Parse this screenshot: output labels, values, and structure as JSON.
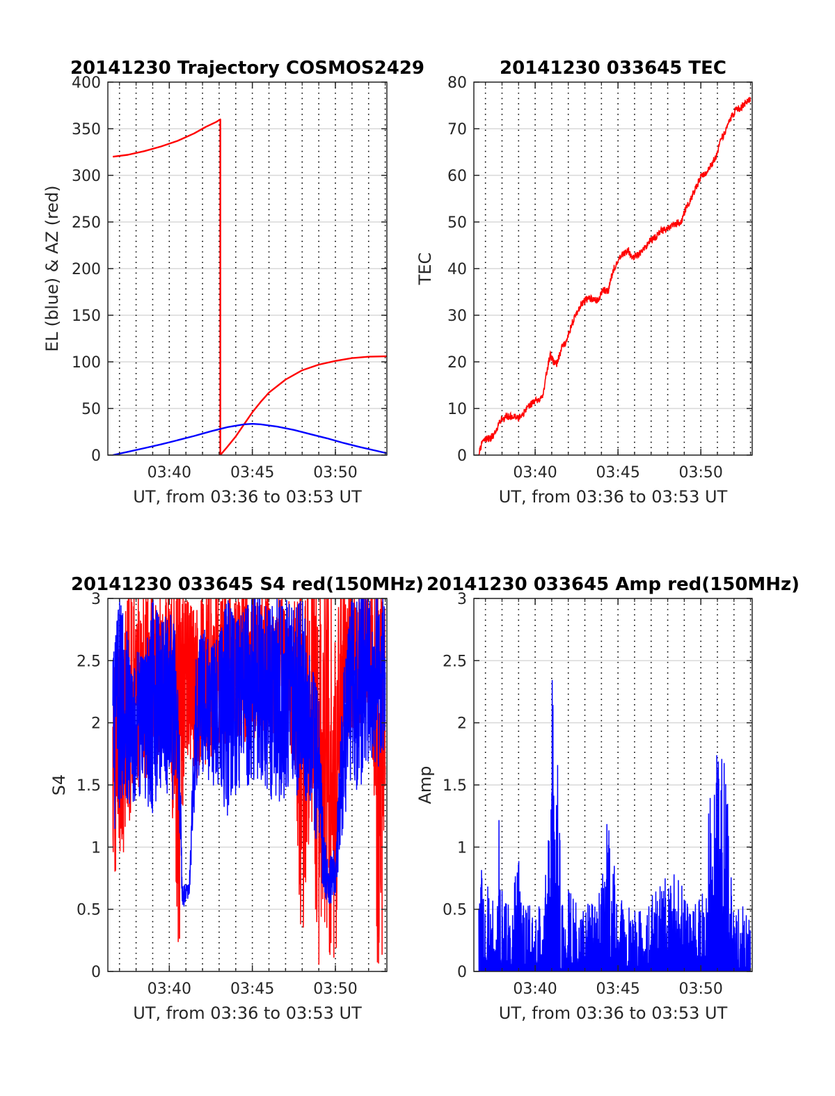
{
  "figure": {
    "background": "#ffffff",
    "colors": {
      "red": "#ff0000",
      "blue": "#0000ff",
      "grid": "#d9d9d9",
      "major_grid_style": "dotted-black",
      "axis": "#262626"
    }
  },
  "chart_data": [
    {
      "type": "line",
      "title": "20141230 Trajectory COSMOS2429",
      "xlabel": "UT, from 03:36 to 03:53 UT",
      "ylabel": "EL (blue) & AZ (red)",
      "x_unit": "minutes after 03:00 UT",
      "xlim": [
        36.3,
        53.1
      ],
      "ylim": [
        0,
        400
      ],
      "x_ticks": [
        40,
        45,
        50
      ],
      "x_tick_labels": [
        "03:40",
        "03:45",
        "03:50"
      ],
      "y_ticks": [
        0,
        50,
        100,
        150,
        200,
        250,
        300,
        350,
        400
      ],
      "y_tick_labels": [
        "0",
        "50",
        "100",
        "150",
        "200",
        "250",
        "300",
        "350",
        "400"
      ],
      "grid": true,
      "series": [
        {
          "color": "#ff0000",
          "kind": "line",
          "x": [
            36.6,
            37.5,
            38.5,
            39.5,
            40.5,
            41.5,
            42.2,
            42.8,
            43.07,
            43.07,
            43.5,
            44.0,
            44.5,
            45.0,
            45.5,
            46.0,
            47.0,
            48.0,
            49.0,
            50.0,
            51.0,
            52.0,
            53.1
          ],
          "y": [
            320,
            322,
            326,
            331,
            337,
            345,
            352,
            357,
            360,
            0,
            9,
            20,
            33,
            46,
            57,
            67,
            81,
            91,
            97,
            101,
            104,
            105.5,
            106
          ]
        },
        {
          "color": "#0000ff",
          "kind": "line",
          "x": [
            36.6,
            37.5,
            38.5,
            39.5,
            40.5,
            41.5,
            42.5,
            43.5,
            44.5,
            45.0,
            45.5,
            46.5,
            47.5,
            48.5,
            49.5,
            50.5,
            51.5,
            52.5,
            53.1
          ],
          "y": [
            0,
            3.5,
            7.5,
            11.5,
            16,
            20.5,
            25.5,
            30,
            33,
            33.5,
            33,
            30.5,
            27,
            22.5,
            18,
            13,
            8.5,
            4.5,
            2
          ]
        }
      ]
    },
    {
      "type": "line",
      "title": "20141230 033645 TEC",
      "xlabel": "UT, from 03:36 to 03:53 UT",
      "ylabel": "TEC",
      "x_unit": "minutes after 03:00 UT",
      "xlim": [
        36.3,
        53.1
      ],
      "ylim": [
        0,
        80
      ],
      "x_ticks": [
        40,
        45,
        50
      ],
      "x_tick_labels": [
        "03:40",
        "03:45",
        "03:50"
      ],
      "y_ticks": [
        0,
        10,
        20,
        30,
        40,
        50,
        60,
        70,
        80
      ],
      "y_tick_labels": [
        "0",
        "10",
        "20",
        "30",
        "40",
        "50",
        "60",
        "70",
        "80"
      ],
      "grid": true,
      "series": [
        {
          "color": "#ff0000",
          "kind": "line",
          "x": [
            36.6,
            36.8,
            37.0,
            37.3,
            37.6,
            37.9,
            38.2,
            38.6,
            39.0,
            39.3,
            39.6,
            39.9,
            40.2,
            40.5,
            40.7,
            40.9,
            41.1,
            41.3,
            41.6,
            41.9,
            42.2,
            42.6,
            42.9,
            43.2,
            43.5,
            43.8,
            44.1,
            44.4,
            44.7,
            45.0,
            45.3,
            45.6,
            45.9,
            46.2,
            46.5,
            46.8,
            47.2,
            47.6,
            48.0,
            48.4,
            48.8,
            49.1,
            49.4,
            49.7,
            50.0,
            50.3,
            50.6,
            50.9,
            51.2,
            51.5,
            51.8,
            52.1,
            52.4,
            52.7,
            53.0
          ],
          "y": [
            0,
            3,
            3.5,
            3.5,
            5,
            7.5,
            8,
            8.5,
            8,
            9,
            10.5,
            11.5,
            12,
            13,
            18,
            21.5,
            20,
            19.5,
            23,
            24.5,
            28,
            31,
            33,
            33.5,
            33.5,
            33,
            35.5,
            35,
            39.5,
            42,
            43,
            44,
            42.5,
            43,
            44,
            45.5,
            46.5,
            48,
            48.5,
            49.5,
            50,
            53,
            55,
            57.5,
            59.5,
            60.5,
            62,
            64,
            67.5,
            69.5,
            72,
            74,
            74.5,
            75.5,
            76.5
          ]
        }
      ]
    },
    {
      "type": "line",
      "title": "20141230 033645 S4 red(150MHz)",
      "xlabel": "UT, from 03:36 to 03:53 UT",
      "ylabel": "S4",
      "x_unit": "minutes after 03:00 UT",
      "xlim": [
        36.3,
        53.1
      ],
      "ylim": [
        0,
        3
      ],
      "x_ticks": [
        40,
        45,
        50
      ],
      "x_tick_labels": [
        "03:40",
        "03:45",
        "03:50"
      ],
      "y_ticks": [
        0,
        0.5,
        1,
        1.5,
        2,
        2.5,
        3
      ],
      "y_tick_labels": [
        "0",
        "0.5",
        "1",
        "1.5",
        "2",
        "2.5",
        "3"
      ],
      "grid": true,
      "series": [
        {
          "color": "#ff0000",
          "kind": "noisy-line",
          "x": [
            36.6,
            37.0,
            37.5,
            38.0,
            38.5,
            39.0,
            39.5,
            40.0,
            40.6,
            41.0,
            41.5,
            42.0,
            42.5,
            43.0,
            43.5,
            44.0,
            44.5,
            45.0,
            45.5,
            46.0,
            46.5,
            47.0,
            47.5,
            48.0,
            48.5,
            49.0,
            49.5,
            50.0,
            50.5,
            51.0,
            51.5,
            52.0,
            52.5,
            53.0
          ],
          "y_low": [
            0.75,
            0.8,
            1.1,
            1.4,
            1.5,
            1.6,
            1.7,
            1.8,
            0.0,
            1.7,
            1.5,
            1.6,
            1.7,
            1.8,
            1.8,
            1.9,
            1.8,
            1.8,
            1.9,
            1.9,
            1.9,
            1.8,
            1.7,
            0.0,
            1.2,
            0.0,
            0.0,
            0.0,
            1.8,
            1.9,
            2.0,
            2.1,
            0.0,
            0.0
          ],
          "y_high": [
            2.4,
            2.6,
            3.0,
            3.0,
            3.0,
            3.0,
            3.0,
            3.0,
            3.0,
            3.0,
            2.9,
            3.0,
            3.0,
            3.0,
            3.0,
            3.0,
            3.0,
            3.0,
            3.0,
            3.0,
            3.0,
            3.0,
            3.0,
            3.0,
            3.0,
            3.0,
            3.0,
            3.0,
            3.0,
            3.0,
            3.0,
            3.0,
            3.0,
            3.0
          ]
        },
        {
          "color": "#0000ff",
          "kind": "noisy-line",
          "x": [
            36.6,
            37.0,
            37.5,
            38.0,
            38.5,
            39.0,
            39.5,
            40.0,
            40.5,
            40.8,
            41.2,
            41.6,
            42.0,
            42.5,
            43.0,
            43.5,
            44.0,
            44.5,
            45.0,
            45.5,
            46.0,
            46.5,
            47.0,
            47.5,
            48.0,
            48.5,
            49.0,
            49.3,
            49.6,
            50.0,
            50.5,
            51.0,
            51.5,
            52.0,
            52.5,
            53.0
          ],
          "y_low": [
            1.1,
            1.2,
            1.3,
            1.35,
            1.4,
            1.2,
            1.45,
            1.35,
            1.4,
            0.5,
            0.6,
            1.4,
            1.55,
            1.3,
            1.5,
            1.2,
            1.35,
            1.45,
            1.5,
            1.5,
            1.4,
            1.3,
            1.35,
            1.25,
            1.4,
            1.3,
            0.9,
            0.6,
            0.5,
            0.6,
            1.2,
            1.5,
            1.4,
            1.7,
            1.6,
            1.7
          ],
          "y_high": [
            2.5,
            3.0,
            2.7,
            2.6,
            2.5,
            3.0,
            2.8,
            2.9,
            2.7,
            0.7,
            0.7,
            2.5,
            2.8,
            2.6,
            2.7,
            3.0,
            2.8,
            2.9,
            3.0,
            3.0,
            2.9,
            3.0,
            3.0,
            2.9,
            3.0,
            2.5,
            2.2,
            1.1,
            0.9,
            1.0,
            2.4,
            3.0,
            3.0,
            3.0,
            3.0,
            3.0
          ]
        }
      ]
    },
    {
      "type": "line",
      "title": "20141230 033645 Amp red(150MHz)",
      "xlabel": "UT, from 03:36 to 03:53 UT",
      "ylabel": "Amp",
      "x_unit": "minutes after 03:00 UT",
      "xlim": [
        36.3,
        53.1
      ],
      "ylim": [
        0,
        3
      ],
      "x_ticks": [
        40,
        45,
        50
      ],
      "x_tick_labels": [
        "03:40",
        "03:45",
        "03:50"
      ],
      "y_ticks": [
        0,
        0.5,
        1,
        1.5,
        2,
        2.5,
        3
      ],
      "y_tick_labels": [
        "0",
        "0.5",
        "1",
        "1.5",
        "2",
        "2.5",
        "3"
      ],
      "grid": true,
      "series": [
        {
          "color": "#0000ff",
          "kind": "noisy-line",
          "x": [
            36.6,
            37.0,
            37.5,
            37.8,
            38.0,
            38.5,
            39.0,
            39.5,
            40.0,
            40.5,
            40.9,
            41.1,
            41.3,
            41.6,
            42.0,
            42.5,
            43.0,
            43.5,
            44.0,
            44.3,
            44.6,
            45.0,
            45.5,
            46.0,
            46.5,
            47.0,
            47.5,
            47.9,
            48.2,
            48.6,
            49.0,
            49.5,
            50.0,
            50.5,
            50.9,
            51.2,
            51.6,
            52.0,
            52.5,
            53.0
          ],
          "y_low": [
            0,
            0,
            0,
            0,
            0,
            0,
            0,
            0,
            0,
            0,
            0,
            0,
            0,
            0,
            0,
            0,
            0,
            0,
            0,
            0,
            0,
            0,
            0,
            0,
            0,
            0,
            0,
            0,
            0,
            0,
            0,
            0,
            0,
            0,
            0,
            0,
            0,
            0,
            0,
            0
          ],
          "y_high": [
            0.8,
            0.85,
            0.7,
            1.35,
            0.65,
            0.6,
            0.9,
            0.6,
            0.55,
            0.6,
            2.5,
            2.45,
            2.0,
            0.6,
            0.7,
            0.6,
            0.55,
            0.55,
            0.7,
            1.3,
            1.35,
            0.6,
            0.55,
            0.5,
            0.55,
            0.6,
            0.7,
            0.8,
            0.7,
            0.9,
            0.6,
            0.55,
            0.6,
            1.4,
            1.8,
            1.8,
            1.6,
            0.7,
            0.65,
            0.4
          ]
        }
      ]
    }
  ]
}
